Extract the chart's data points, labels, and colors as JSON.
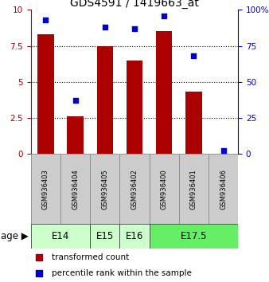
{
  "title": "GDS4591 / 1419663_at",
  "samples": [
    "GSM936403",
    "GSM936404",
    "GSM936405",
    "GSM936402",
    "GSM936400",
    "GSM936401",
    "GSM936406"
  ],
  "transformed_count": [
    8.3,
    2.6,
    7.5,
    6.5,
    8.5,
    4.3,
    0.0
  ],
  "percentile_rank": [
    93,
    37,
    88,
    87,
    96,
    68,
    2
  ],
  "bar_color": "#aa0000",
  "dot_color": "#0000cc",
  "ylim_left": [
    0,
    10
  ],
  "ylim_right": [
    0,
    100
  ],
  "yticks_left": [
    0,
    2.5,
    5,
    7.5,
    10
  ],
  "ytick_labels_left": [
    "0",
    "2.5",
    "5",
    "7.5",
    "10"
  ],
  "yticks_right": [
    0,
    25,
    50,
    75,
    100
  ],
  "ytick_labels_right": [
    "0",
    "25",
    "50",
    "75",
    "100%"
  ],
  "age_groups": [
    {
      "label": "E14",
      "start": 0,
      "end": 2,
      "color": "#ccffcc"
    },
    {
      "label": "E15",
      "start": 2,
      "end": 3,
      "color": "#ccffcc"
    },
    {
      "label": "E16",
      "start": 3,
      "end": 4,
      "color": "#ccffcc"
    },
    {
      "label": "E17.5",
      "start": 4,
      "end": 7,
      "color": "#66ee66"
    }
  ],
  "sample_box_color": "#cccccc",
  "legend_bar_label": "transformed count",
  "legend_dot_label": "percentile rank within the sample",
  "age_label": "age",
  "title_fontsize": 10,
  "tick_fontsize": 7.5,
  "sample_fontsize": 6,
  "age_fontsize": 8.5,
  "legend_fontsize": 7.5
}
